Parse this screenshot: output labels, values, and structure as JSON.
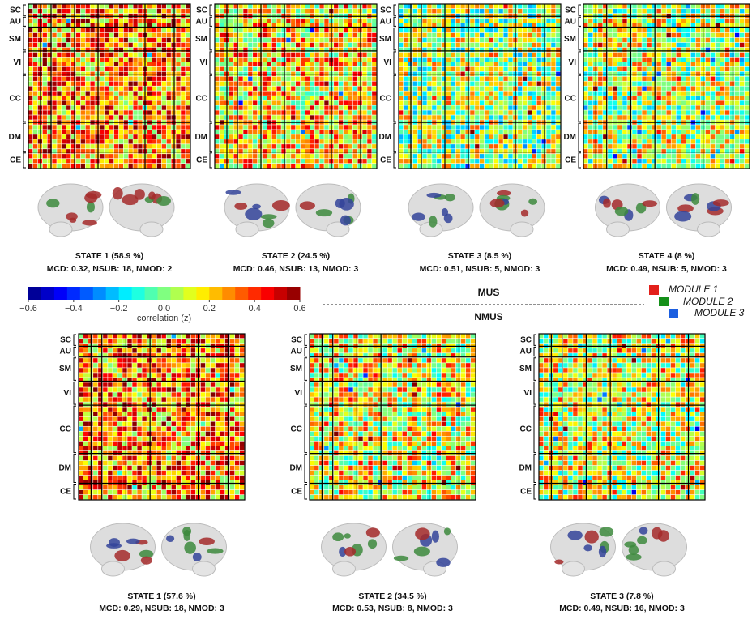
{
  "colorbar": {
    "label": "correlation (z)",
    "lim": [
      -0.6,
      0.6
    ],
    "ticks": [
      {
        "value": -0.6,
        "label": "−0.6"
      },
      {
        "value": -0.4,
        "label": "−0.4"
      },
      {
        "value": -0.2,
        "label": "−0.2"
      },
      {
        "value": 0,
        "label": "0.0"
      },
      0.2,
      0.4,
      0.6
    ]
  },
  "module_labels": [
    "SC",
    "AU",
    "SM",
    "VI",
    "CC",
    "DM",
    "CE"
  ],
  "groups": [
    {
      "label": "MUS",
      "states": [
        {
          "title": "STATE 1 (58.9 %)",
          "stats": "MCD: 0.32, NSUB: 18, NMOD: 2"
        },
        {
          "title": "STATE 2 (24.5 %)",
          "stats": "MCD: 0.46, NSUB: 13, NMOD: 3"
        },
        {
          "title": "STATE 3 (8.5 %)",
          "stats": "MCD: 0.51, NSUB: 5, NMOD: 3"
        },
        {
          "title": "STATE 4 (8 %)",
          "stats": "MCD: 0.49, NSUB: 5, NMOD: 3"
        }
      ]
    },
    {
      "label": "NMUS",
      "states": [
        {
          "title": "STATE 1 (57.6 %)",
          "stats": "MCD: 0.29, NSUB: 18, NMOD: 3"
        },
        {
          "title": "STATE 2 (34.5 %)",
          "stats": "MCD: 0.53, NSUB: 8, NMOD: 3"
        },
        {
          "title": "STATE 3 (7.8 %)",
          "stats": "MCD: 0.49, NSUB: 16, NMOD: 3"
        }
      ]
    }
  ],
  "legend": [
    {
      "name": "MODULE 1",
      "color": "#e3201b"
    },
    {
      "name": "MODULE 2",
      "color": "#15901a"
    },
    {
      "name": "MODULE 3",
      "color": "#1c5fe0"
    }
  ]
}
